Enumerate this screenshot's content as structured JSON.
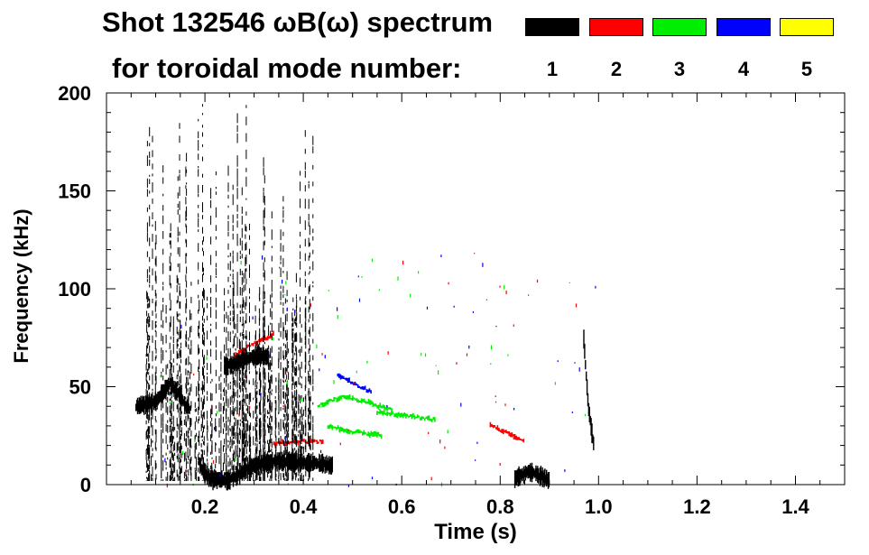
{
  "header": {
    "title_line1": "Shot 132546 ωB(ω) spectrum",
    "title_line2": "for toroidal mode number:"
  },
  "legend": [
    {
      "label": "1",
      "color": "#000000"
    },
    {
      "label": "2",
      "color": "#ff0000"
    },
    {
      "label": "3",
      "color": "#00ee00"
    },
    {
      "label": "4",
      "color": "#0000ff"
    },
    {
      "label": "5",
      "color": "#ffff00"
    }
  ],
  "chart_data": {
    "type": "heatmap",
    "title": "Shot 132546 ωB(ω) spectrum",
    "xlabel": "Time (s)",
    "ylabel": "Frequency (kHz)",
    "xlim": [
      0.0,
      1.5
    ],
    "ylim": [
      0,
      200
    ],
    "xticks": [
      0.2,
      0.4,
      0.6,
      0.8,
      1.0,
      1.2,
      1.4
    ],
    "xtick_labels": [
      "0.2",
      "0.4",
      "0.6",
      "0.8",
      "1.0",
      "1.2",
      "1.4"
    ],
    "yticks": [
      0,
      50,
      100,
      150,
      200
    ],
    "ytick_labels": [
      "0",
      "50",
      "100",
      "150",
      "200"
    ],
    "grid": false,
    "legend_position": "top-right",
    "series": [
      {
        "name": "1",
        "color": "#000000",
        "features": [
          {
            "t": [
              0.06,
              0.1,
              0.13,
              0.17
            ],
            "f": [
              40,
              42,
              52,
              38
            ]
          },
          {
            "t": [
              0.19,
              0.21,
              0.25,
              0.3,
              0.35,
              0.41,
              0.46
            ],
            "f": [
              10,
              3,
              2,
              10,
              12,
              11,
              10
            ]
          },
          {
            "t": [
              0.24,
              0.27,
              0.31,
              0.33
            ],
            "f": [
              60,
              63,
              66,
              65
            ]
          },
          {
            "t": [
              0.83,
              0.86,
              0.9
            ],
            "f": [
              3,
              7,
              2
            ]
          },
          {
            "t": [
              0.97,
              0.975,
              0.98,
              0.99
            ],
            "f": [
              75,
              55,
              38,
              20
            ]
          }
        ]
      },
      {
        "name": "2",
        "color": "#ff0000",
        "features": [
          {
            "t": [
              0.26,
              0.3,
              0.34
            ],
            "f": [
              66,
              72,
              77
            ]
          },
          {
            "t": [
              0.34,
              0.4,
              0.44
            ],
            "f": [
              21,
              22,
              22
            ]
          },
          {
            "t": [
              0.78,
              0.82,
              0.85
            ],
            "f": [
              30,
              26,
              22
            ]
          }
        ]
      },
      {
        "name": "3",
        "color": "#00ee00",
        "features": [
          {
            "t": [
              0.43,
              0.48,
              0.53,
              0.58
            ],
            "f": [
              40,
              45,
              42,
              38
            ]
          },
          {
            "t": [
              0.55,
              0.62,
              0.67
            ],
            "f": [
              37,
              35,
              33
            ]
          },
          {
            "t": [
              0.45,
              0.5,
              0.56
            ],
            "f": [
              30,
              27,
              25
            ]
          }
        ]
      },
      {
        "name": "4",
        "color": "#0000ff",
        "features": [
          {
            "t": [
              0.47,
              0.5,
              0.54
            ],
            "f": [
              56,
              52,
              47
            ]
          }
        ]
      },
      {
        "name": "5",
        "color": "#ffff00",
        "features": []
      }
    ]
  }
}
